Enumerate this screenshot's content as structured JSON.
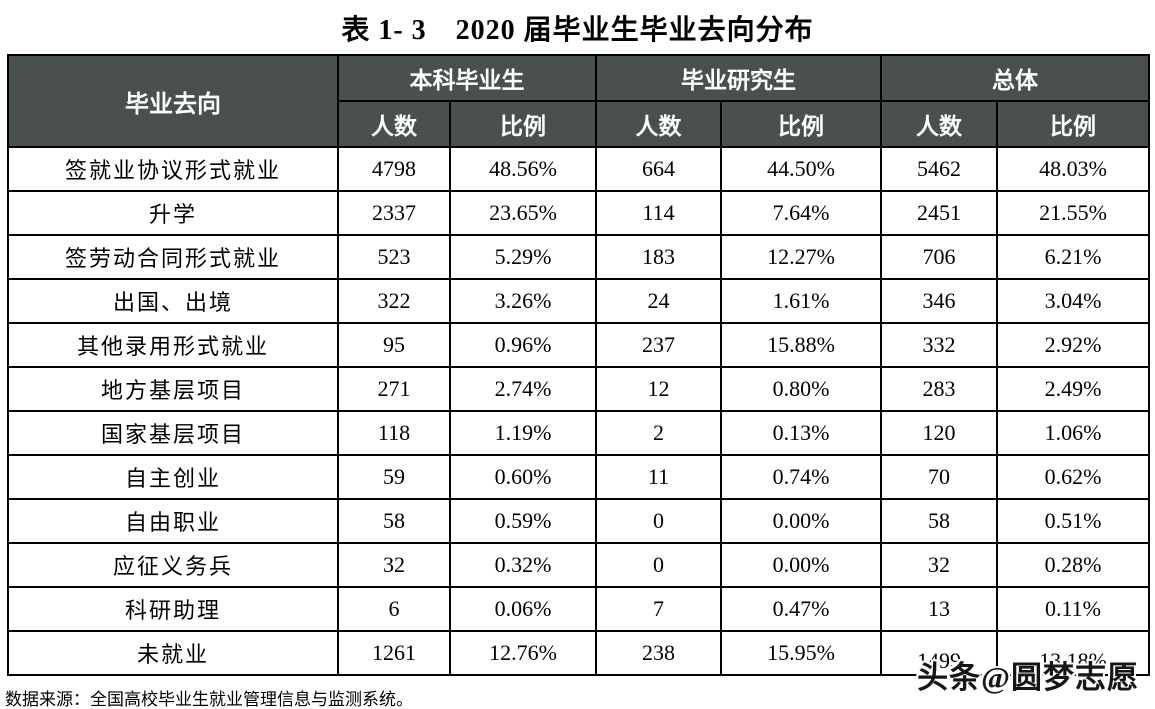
{
  "title": "表 1- 3　2020 届毕业生毕业去向分布",
  "table": {
    "corner_header": "毕业去向",
    "groups": [
      {
        "label": "本科毕业生"
      },
      {
        "label": "毕业研究生"
      },
      {
        "label": "总体"
      }
    ],
    "sub_headers": {
      "count": "人数",
      "ratio": "比例"
    },
    "rows": [
      {
        "label": "签就业协议形式就业",
        "ug_count": "4798",
        "ug_ratio": "48.56%",
        "pg_count": "664",
        "pg_ratio": "44.50%",
        "total_count": "5462",
        "total_ratio": "48.03%"
      },
      {
        "label": "升学",
        "ug_count": "2337",
        "ug_ratio": "23.65%",
        "pg_count": "114",
        "pg_ratio": "7.64%",
        "total_count": "2451",
        "total_ratio": "21.55%"
      },
      {
        "label": "签劳动合同形式就业",
        "ug_count": "523",
        "ug_ratio": "5.29%",
        "pg_count": "183",
        "pg_ratio": "12.27%",
        "total_count": "706",
        "total_ratio": "6.21%"
      },
      {
        "label": "出国、出境",
        "ug_count": "322",
        "ug_ratio": "3.26%",
        "pg_count": "24",
        "pg_ratio": "1.61%",
        "total_count": "346",
        "total_ratio": "3.04%"
      },
      {
        "label": "其他录用形式就业",
        "ug_count": "95",
        "ug_ratio": "0.96%",
        "pg_count": "237",
        "pg_ratio": "15.88%",
        "total_count": "332",
        "total_ratio": "2.92%"
      },
      {
        "label": "地方基层项目",
        "ug_count": "271",
        "ug_ratio": "2.74%",
        "pg_count": "12",
        "pg_ratio": "0.80%",
        "total_count": "283",
        "total_ratio": "2.49%"
      },
      {
        "label": "国家基层项目",
        "ug_count": "118",
        "ug_ratio": "1.19%",
        "pg_count": "2",
        "pg_ratio": "0.13%",
        "total_count": "120",
        "total_ratio": "1.06%"
      },
      {
        "label": "自主创业",
        "ug_count": "59",
        "ug_ratio": "0.60%",
        "pg_count": "11",
        "pg_ratio": "0.74%",
        "total_count": "70",
        "total_ratio": "0.62%"
      },
      {
        "label": "自由职业",
        "ug_count": "58",
        "ug_ratio": "0.59%",
        "pg_count": "0",
        "pg_ratio": "0.00%",
        "total_count": "58",
        "total_ratio": "0.51%"
      },
      {
        "label": "应征义务兵",
        "ug_count": "32",
        "ug_ratio": "0.32%",
        "pg_count": "0",
        "pg_ratio": "0.00%",
        "total_count": "32",
        "total_ratio": "0.28%"
      },
      {
        "label": "科研助理",
        "ug_count": "6",
        "ug_ratio": "0.06%",
        "pg_count": "7",
        "pg_ratio": "0.47%",
        "total_count": "13",
        "total_ratio": "0.11%"
      },
      {
        "label": "未就业",
        "ug_count": "1261",
        "ug_ratio": "12.76%",
        "pg_count": "238",
        "pg_ratio": "15.95%",
        "total_count": "1499",
        "total_ratio": "13.18%"
      }
    ]
  },
  "footer": {
    "source": "数据来源：全国高校毕业生就业管理信息与监测系统。"
  },
  "watermark": {
    "text": "头条@圆梦志愿"
  },
  "colors": {
    "header_bg": "#4a4f4f",
    "header_text": "#ffffff",
    "border": "#000000",
    "body_bg": "#ffffff"
  }
}
